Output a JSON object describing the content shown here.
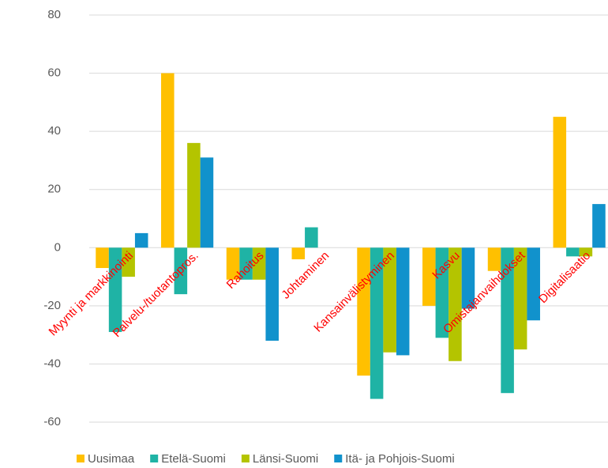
{
  "chart_data": {
    "type": "bar",
    "categories": [
      "Myynti ja markkinointi",
      "Palvelu-/tuotantopros.",
      "Rahoitus",
      "Johtaminen",
      "Kansainvälistyminen",
      "Kasvu",
      "Omistajanvaihdokset",
      "Digitalisaatio"
    ],
    "series": [
      {
        "name": "Uusimaa",
        "color": "#ffc000",
        "values": [
          -7,
          60,
          -11,
          -4,
          -44,
          -20,
          -8,
          45
        ]
      },
      {
        "name": "Etelä-Suomi",
        "color": "#1fb3a5",
        "values": [
          -29,
          -16,
          -11,
          7,
          -52,
          -31,
          -50,
          -3
        ]
      },
      {
        "name": "Länsi-Suomi",
        "color": "#b4c400",
        "values": [
          -10,
          36,
          -11,
          0,
          -36,
          -39,
          -35,
          -3
        ]
      },
      {
        "name": "Itä- ja Pohjois-Suomi",
        "color": "#1192cc",
        "values": [
          5,
          31,
          -32,
          0,
          -37,
          -21,
          -25,
          15
        ]
      }
    ],
    "ylim": [
      -60,
      80
    ],
    "yticks": [
      -60,
      -40,
      -20,
      0,
      20,
      40,
      60,
      80
    ],
    "grid": true,
    "legend": "bottom"
  }
}
